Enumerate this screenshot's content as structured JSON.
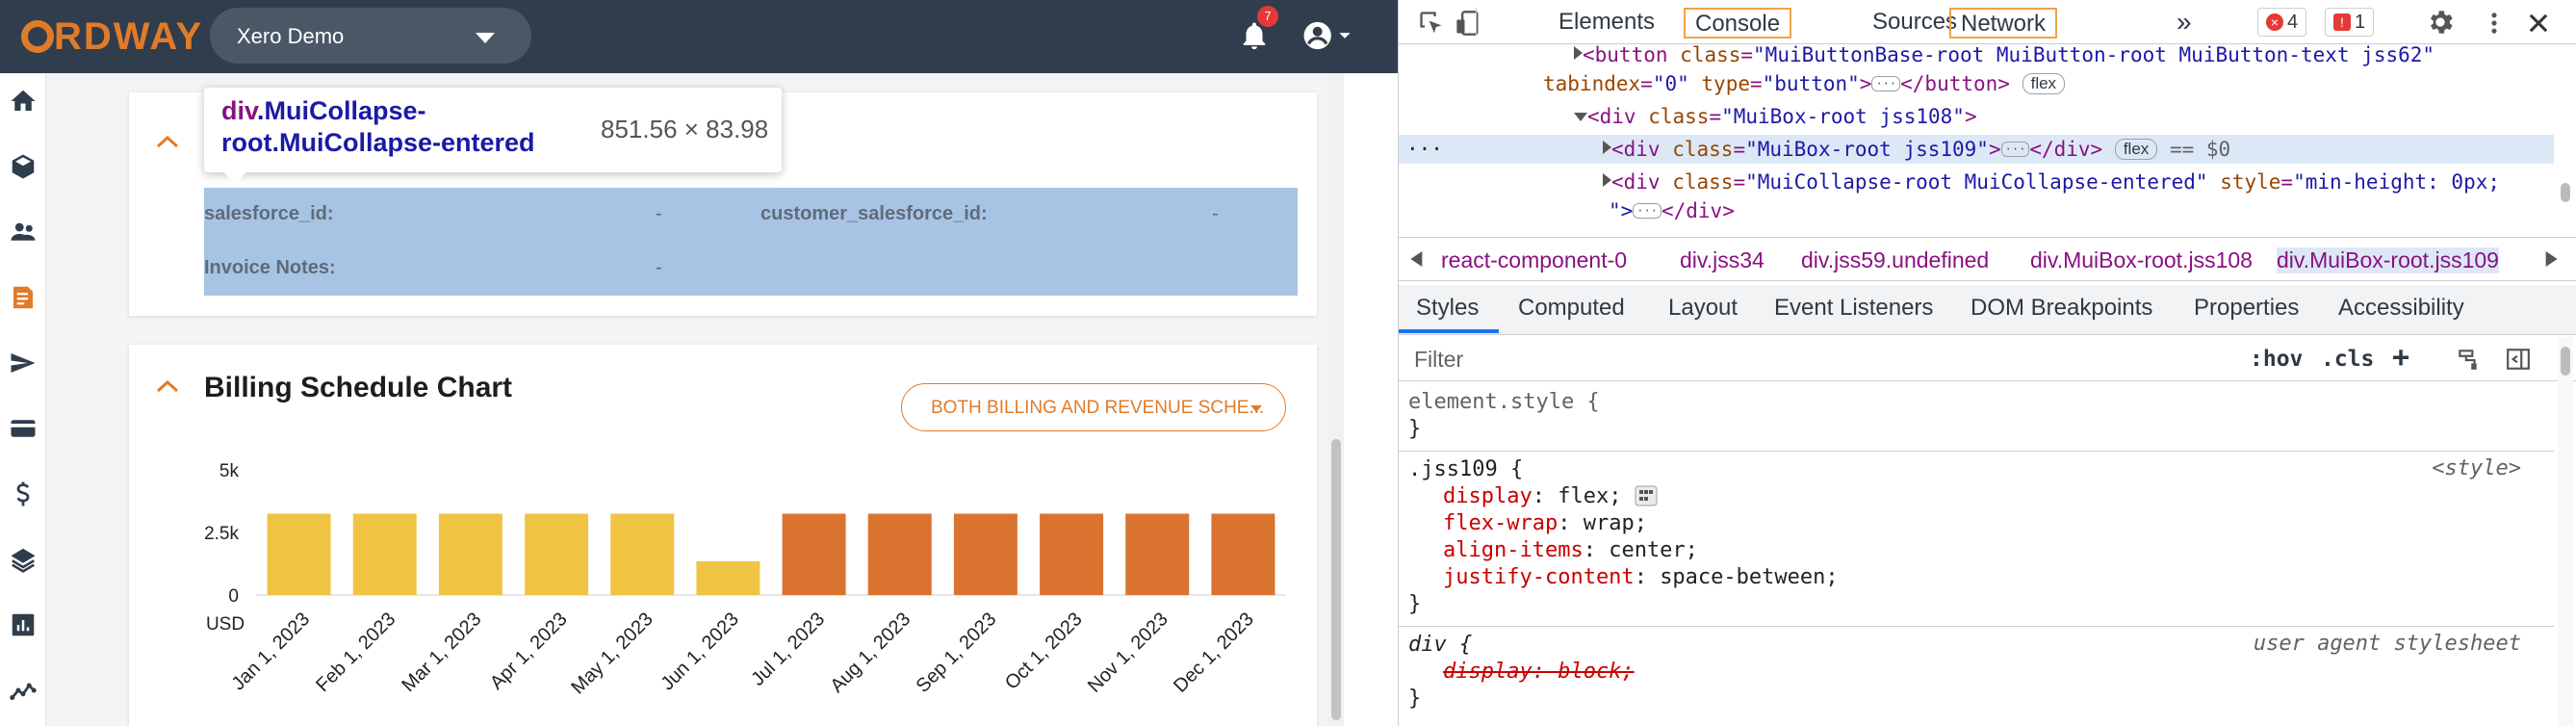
{
  "app": {
    "logo_text": "ORDWAY",
    "org_name": "Xero Demo",
    "notification_count": "7"
  },
  "nav_icons": [
    "home-icon",
    "box-icon",
    "customers-icon",
    "billing-icon",
    "send-icon",
    "card-icon",
    "dollar-icon",
    "layers-icon",
    "reports-icon",
    "analytics-icon"
  ],
  "tooltip": {
    "tag": "div",
    "classes": ".MuiCollapse-root.MuiCollapse-entered",
    "size": "851.56 × 83.98"
  },
  "fields": {
    "salesforce_id_label": "salesforce_id:",
    "salesforce_id_value": "-",
    "customer_salesforce_id_label": "customer_salesforce_id:",
    "customer_salesforce_id_value": "-",
    "invoice_notes_label": "Invoice Notes:",
    "invoice_notes_value": "-"
  },
  "chart_section": {
    "title": "Billing Schedule Chart",
    "schedule_button": "BOTH BILLING AND REVENUE SCHE..."
  },
  "chart_data": {
    "type": "bar",
    "categories": [
      "Jan 1, 2023",
      "Feb 1, 2023",
      "Mar 1, 2023",
      "Apr 1, 2023",
      "May 1, 2023",
      "Jun 1, 2023",
      "Jul 1, 2023",
      "Aug 1, 2023",
      "Sep 1, 2023",
      "Oct 1, 2023",
      "Nov 1, 2023",
      "Dec 1, 2023"
    ],
    "values": [
      3250,
      3250,
      3250,
      3250,
      3250,
      1350,
      3250,
      3250,
      3250,
      3250,
      3250,
      3250
    ],
    "colors": [
      "#f0c443",
      "#f0c443",
      "#f0c443",
      "#f0c443",
      "#f0c443",
      "#f0c443",
      "#db7330",
      "#db7330",
      "#db7330",
      "#db7330",
      "#db7330",
      "#db7330"
    ],
    "ylim": [
      0,
      5000
    ],
    "yticks": [
      "0",
      "2.5k",
      "5k"
    ],
    "ylabel": "USD"
  },
  "devtools": {
    "tabs": [
      "Elements",
      "Console",
      "Sources",
      "Network"
    ],
    "more": "»",
    "error_count": "4",
    "issue_count": "1",
    "dom_lines": {
      "l1_open": "<button ",
      "l1_attr1": "class",
      "l1_val1": "\"MuiButtonBase-root MuiButton-root MuiButton-text jss62\"",
      "l2_attr1": "tabindex",
      "l2_val1": "\"0\"",
      "l2_attr2": "type",
      "l2_val2": "\"button\"",
      "l2_close": "</button>",
      "l2_pill": "flex",
      "l3_open": "<div ",
      "l3_attr": "class",
      "l3_val": "\"MuiBox-root jss108\"",
      "l3_close": ">",
      "l4_open": "<div ",
      "l4_attr": "class",
      "l4_val": "\"MuiBox-root jss109\"",
      "l4_close": "</div>",
      "l4_pill": "flex",
      "l4_eq": "== $0",
      "l5_open": "<div ",
      "l5_attr1": "class",
      "l5_val1": "\"MuiCollapse-root MuiCollapse-entered\"",
      "l5_attr2": "style",
      "l5_val2": "\"min-height: 0px;",
      "l6_close": "</div>",
      "l6_prefix": "\">"
    },
    "breadcrumbs": [
      "react-component-0",
      "div.jss34",
      "div.jss59.undefined",
      "div.MuiBox-root.jss108",
      "div.MuiBox-root.jss109"
    ],
    "subtabs": [
      "Styles",
      "Computed",
      "Layout",
      "Event Listeners",
      "DOM Breakpoints",
      "Properties",
      "Accessibility"
    ],
    "filter_placeholder": "Filter",
    "hov": ":hov",
    "cls": ".cls",
    "rules": {
      "element_style": "element.style {",
      "close": "}",
      "jss109_sel": ".jss109 {",
      "jss109_src": "<style>",
      "p1_name": "display",
      "p1_val": "flex;",
      "p2_name": "flex-wrap",
      "p2_val": "wrap;",
      "p3_name": "align-items",
      "p3_val": "center;",
      "p4_name": "justify-content",
      "p4_val": "space-between;",
      "div_sel": "div {",
      "div_src": "user agent stylesheet",
      "div_prop": "display: block;"
    }
  }
}
